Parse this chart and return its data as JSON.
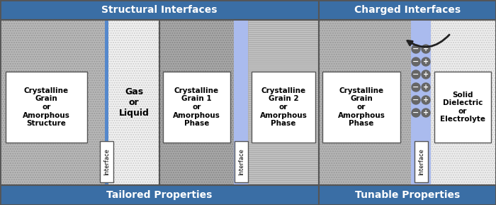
{
  "bg_color": "#ffffff",
  "header_color": "#3a6ea5",
  "header_text_color": "#ffffff",
  "footer_color": "#3a6ea5",
  "footer_text_color": "#ffffff",
  "section1_title": "Structural Interfaces",
  "section2_title": "Charged Interfaces",
  "footer1_title": "Tailored Properties",
  "footer2_title": "Tunable Properties",
  "label_A_left": "Crystalline\nGrain\nor\nAmorphous\nStructure",
  "label_A_right": "Gas\nor\nLiquid",
  "label_B_left": "Crystalline\nGrain 1\nor\nAmorphous\nPhase",
  "label_B_right": "Crystalline\nGrain 2\nor\nAmorphous\nPhase",
  "label_C_left": "Crystalline\nGrain\nor\nAmorphous\nPhase",
  "label_C_right": "Solid\nDielectric\nor\nElectrolyte",
  "interface_label": "Interface",
  "grain_gray": "#b0b0b0",
  "grain_dark_gray": "#a0a0a0",
  "gas_liquid_white": "#f0f0f0",
  "solid_dielectric_dot": "#e8e8e8",
  "horizontal_lines_gray": "#c8c8c8",
  "interface_blue_line": "#6699cc",
  "interface_blue_strip": "#aabbdd",
  "border_color": "#555555",
  "text_box_fill": "#ffffff",
  "particle_color": "#666666"
}
